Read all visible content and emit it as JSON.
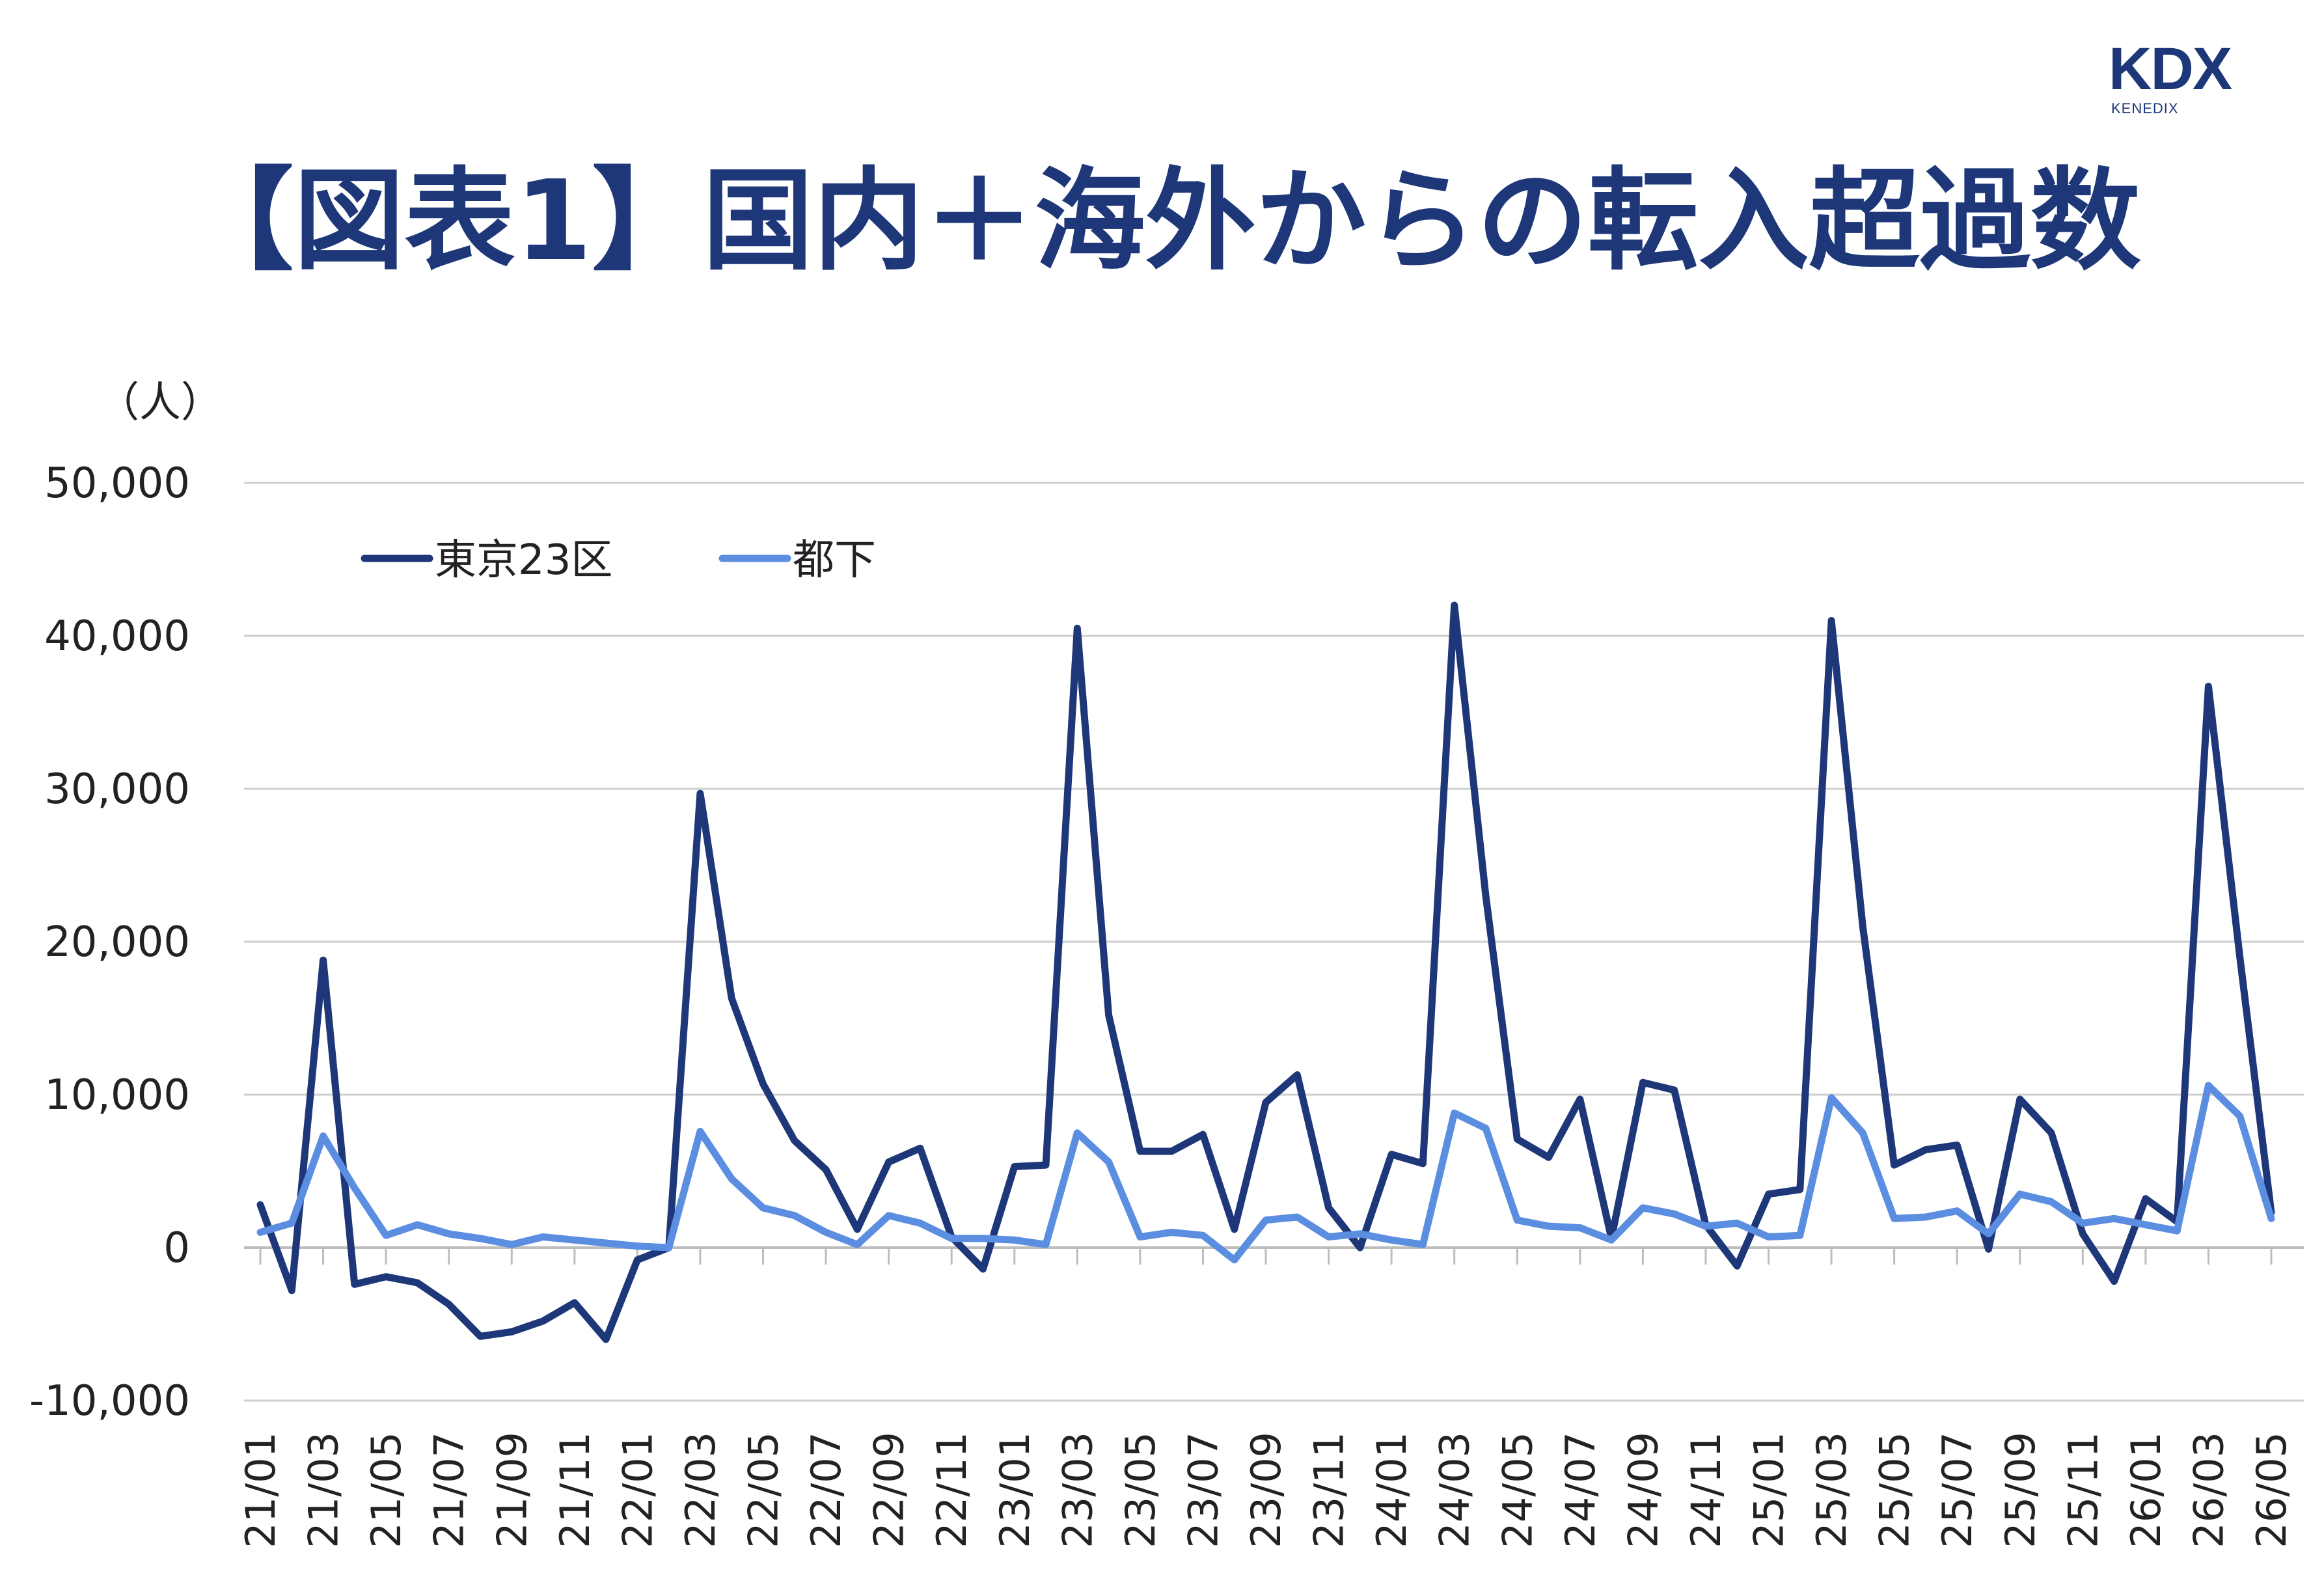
{
  "logo": {
    "mark": "KDX",
    "sub": "KENEDIX"
  },
  "title": "【図表1】国内＋海外からの転入超過数",
  "colors": {
    "title": "#1d3778",
    "grid": "#cfcfcf",
    "axis": "#bdbdbd"
  },
  "chart_data": {
    "type": "line",
    "title": "【図表1】国内＋海外からの転入超過数",
    "ylabel": "（人）",
    "ylim": [
      -10000,
      50000
    ],
    "yticks": [
      50000,
      40000,
      30000,
      20000,
      10000,
      0,
      -10000
    ],
    "ytick_labels": [
      "50,000",
      "40,000",
      "30,000",
      "20,000",
      "10,000",
      "0",
      "-10,000"
    ],
    "grid": true,
    "legend_position": "top-left",
    "x": [
      "21/01",
      "21/02",
      "21/03",
      "21/04",
      "21/05",
      "21/06",
      "21/07",
      "21/08",
      "21/09",
      "21/10",
      "21/11",
      "21/12",
      "22/01",
      "22/02",
      "22/03",
      "22/04",
      "22/05",
      "22/06",
      "22/07",
      "22/08",
      "22/09",
      "22/10",
      "22/11",
      "22/12",
      "23/01",
      "23/02",
      "23/03",
      "23/04",
      "23/05",
      "23/06",
      "23/07",
      "23/08",
      "23/09",
      "23/10",
      "23/11",
      "23/12",
      "24/01",
      "24/02",
      "24/03",
      "24/04",
      "24/05",
      "24/06",
      "24/07",
      "24/08",
      "24/09",
      "24/10",
      "24/11",
      "24/12",
      "25/01",
      "25/02",
      "25/03",
      "25/04",
      "25/05",
      "25/06",
      "25/07",
      "25/08",
      "25/09",
      "25/10",
      "25/11",
      "25/12",
      "26/01",
      "26/02",
      "26/03",
      "26/04",
      "26/05"
    ],
    "x_tick_labels": [
      "21/01",
      "21/03",
      "21/05",
      "21/07",
      "21/09",
      "21/11",
      "22/01",
      "22/03",
      "22/05",
      "22/07",
      "22/09",
      "22/11",
      "23/01",
      "23/03",
      "23/05",
      "23/07",
      "23/09",
      "23/11",
      "24/01",
      "24/03",
      "24/05",
      "24/07",
      "24/09",
      "24/11",
      "25/01",
      "25/03",
      "25/05",
      "25/07",
      "25/09",
      "25/11",
      "26/01",
      "26/03",
      "26/05"
    ],
    "series": [
      {
        "name": "東京23区",
        "color": "#1d3778",
        "values": [
          2800,
          -2800,
          18800,
          -2400,
          -1900,
          -2300,
          -3700,
          -5800,
          -5500,
          -4800,
          -3600,
          -6000,
          -800,
          0,
          29700,
          16300,
          10700,
          7000,
          5100,
          1200,
          5600,
          6500,
          700,
          -1400,
          5300,
          5400,
          40500,
          15200,
          6300,
          6300,
          7400,
          1200,
          9500,
          11300,
          2600,
          0,
          6100,
          5500,
          42000,
          23000,
          7100,
          5900,
          9700,
          600,
          10800,
          10300,
          1500,
          -1200,
          3500,
          3800,
          41000,
          21000,
          5400,
          6400,
          6700,
          -100,
          9700,
          7500,
          900,
          -2200,
          3200,
          1700,
          36700,
          19000,
          2300
        ]
      },
      {
        "name": "都下",
        "color": "#5b8ee0",
        "values": [
          1000,
          1600,
          7300,
          3900,
          800,
          1500,
          900,
          600,
          200,
          700,
          500,
          300,
          100,
          0,
          7600,
          4500,
          2600,
          2100,
          1000,
          200,
          2100,
          1600,
          600,
          600,
          500,
          200,
          7500,
          5600,
          700,
          1000,
          800,
          -800,
          1800,
          2000,
          700,
          900,
          500,
          200,
          8800,
          7800,
          1800,
          1400,
          1300,
          500,
          2600,
          2200,
          1400,
          1600,
          700,
          800,
          9800,
          7500,
          1900,
          2000,
          2400,
          900,
          3500,
          3000,
          1600,
          1900,
          1500,
          1100,
          10600,
          8600,
          1900
        ]
      }
    ]
  }
}
